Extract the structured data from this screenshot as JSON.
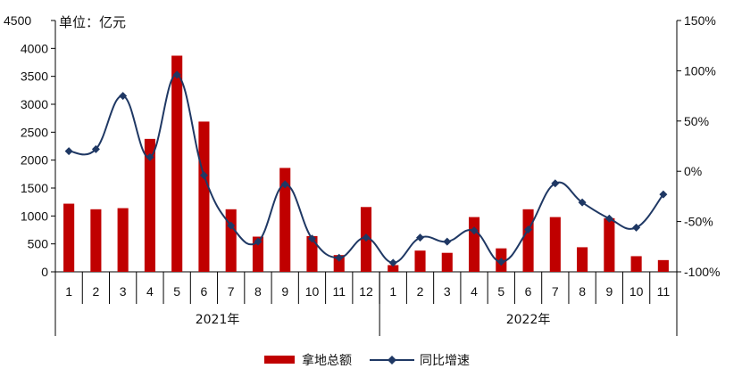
{
  "chart_data": {
    "type": "bar+line",
    "unit_label": "单位：亿元",
    "groups": [
      {
        "label": "2021年",
        "months": [
          "1",
          "2",
          "3",
          "4",
          "5",
          "6",
          "7",
          "8",
          "9",
          "10",
          "11",
          "12"
        ]
      },
      {
        "label": "2022年",
        "months": [
          "1",
          "2",
          "3",
          "4",
          "5",
          "6",
          "7",
          "8",
          "9",
          "10",
          "11"
        ]
      }
    ],
    "left_axis": {
      "ylim": [
        0,
        4500
      ],
      "ticks": [
        0,
        500,
        1000,
        1500,
        2000,
        2500,
        3000,
        3500,
        4000,
        4500
      ]
    },
    "right_axis": {
      "ylim": [
        -100,
        150
      ],
      "ticks": [
        "-100%",
        "-50%",
        "0%",
        "50%",
        "100%",
        "150%"
      ],
      "tick_values": [
        -100,
        -50,
        0,
        50,
        100,
        150
      ]
    },
    "series": [
      {
        "name": "拿地总额",
        "kind": "bar",
        "axis": "left",
        "color": "#C00000",
        "values": [
          1220,
          1120,
          1140,
          2380,
          3870,
          2690,
          1120,
          630,
          1860,
          640,
          300,
          1160,
          120,
          380,
          340,
          980,
          420,
          1120,
          980,
          440,
          960,
          280,
          210
        ]
      },
      {
        "name": "同比增速",
        "kind": "line",
        "axis": "right",
        "color": "#1F3864",
        "values": [
          20,
          22,
          75,
          14,
          96,
          -4,
          -54,
          -70,
          -13,
          -67,
          -86,
          -66,
          -91,
          -66,
          -70,
          -59,
          -90,
          -58,
          -12,
          -31,
          -47,
          -56,
          -23
        ]
      }
    ],
    "legend": {
      "position": "bottom",
      "items": [
        "拿地总额",
        "同比增速"
      ]
    }
  }
}
